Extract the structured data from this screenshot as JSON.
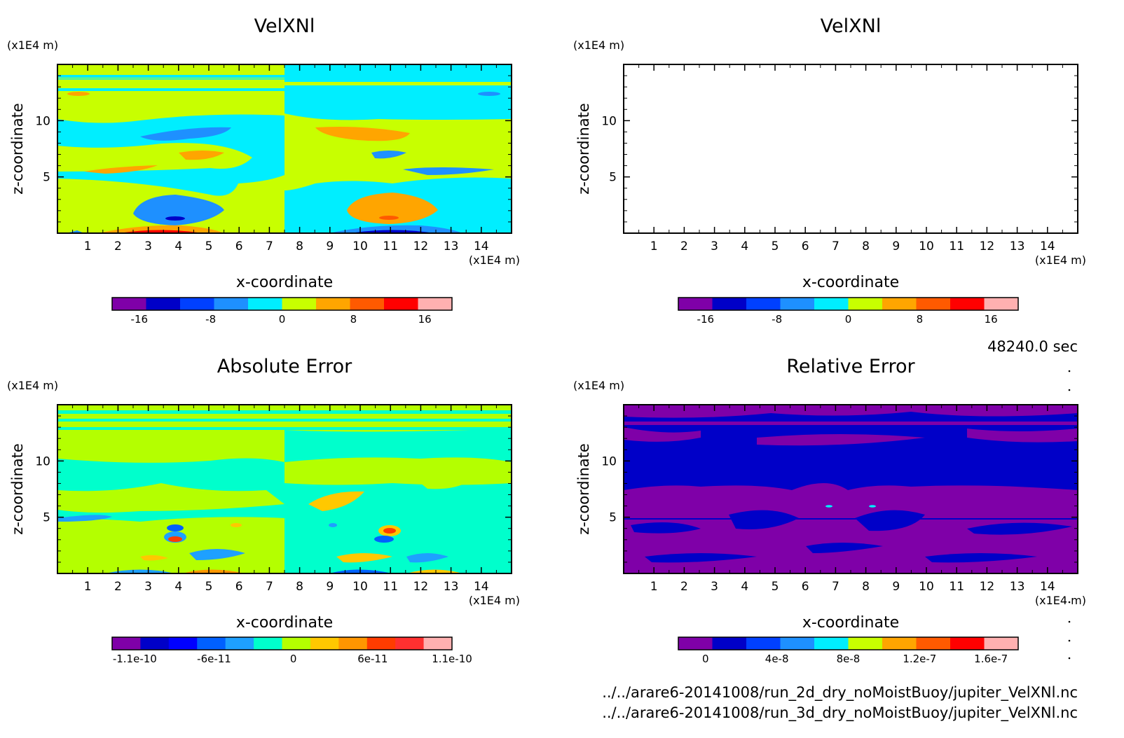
{
  "timestamp": "48240.0 sec",
  "files": [
    "../../arare6-20141008/run_2d_dry_noMoistBuoy/jupiter_VelXNl.nc",
    "../../arare6-20141008/run_3d_dry_noMoistBuoy/jupiter_VelXNl.nc"
  ],
  "chart_data": [
    {
      "type": "heatmap",
      "title": "VelXNl",
      "xlabel": "x-coordinate",
      "ylabel": "z-coordinate",
      "x_unit": "(x1E4 m)",
      "y_unit": "(x1E4 m)",
      "xlim": [
        0,
        15
      ],
      "ylim": [
        0,
        15
      ],
      "x_ticks": [
        1,
        2,
        3,
        4,
        5,
        6,
        7,
        8,
        9,
        10,
        11,
        12,
        13,
        14
      ],
      "y_ticks": [
        5,
        10
      ],
      "colorbar": {
        "colors": [
          "#7f00a8",
          "#0000c8",
          "#0040ff",
          "#1e90ff",
          "#00eeff",
          "#c8ff00",
          "#ffa500",
          "#ff5a00",
          "#ff0000",
          "#ffb0b0"
        ],
        "tick_labels": [
          "-16",
          "-8",
          "0",
          "8",
          "16"
        ]
      }
    },
    {
      "type": "heatmap",
      "title": "VelXNl",
      "xlabel": "x-coordinate",
      "ylabel": "z-coordinate",
      "x_unit": "(x1E4 m)",
      "y_unit": "(x1E4 m)",
      "xlim": [
        0,
        15
      ],
      "ylim": [
        0,
        15
      ],
      "x_ticks": [
        1,
        2,
        3,
        4,
        5,
        6,
        7,
        8,
        9,
        10,
        11,
        12,
        13,
        14
      ],
      "y_ticks": [
        5,
        10
      ],
      "colorbar": {
        "colors": [
          "#7f00a8",
          "#0000c8",
          "#0040ff",
          "#1e90ff",
          "#00eeff",
          "#c8ff00",
          "#ffa500",
          "#ff5a00",
          "#ff0000",
          "#ffb0b0"
        ],
        "tick_labels": [
          "-16",
          "-8",
          "0",
          "8",
          "16"
        ]
      }
    },
    {
      "type": "heatmap",
      "title": "Absolute Error",
      "xlabel": "x-coordinate",
      "ylabel": "z-coordinate",
      "x_unit": "(x1E4 m)",
      "y_unit": "(x1E4 m)",
      "xlim": [
        0,
        15
      ],
      "ylim": [
        0,
        15
      ],
      "x_ticks": [
        1,
        2,
        3,
        4,
        5,
        6,
        7,
        8,
        9,
        10,
        11,
        12,
        13,
        14
      ],
      "y_ticks": [
        5,
        10
      ],
      "colorbar": {
        "colors": [
          "#7f00a8",
          "#0000c8",
          "#0000ff",
          "#0060ff",
          "#1ea0ff",
          "#00ffcc",
          "#b4ff00",
          "#ffc800",
          "#ff9600",
          "#ff3c00",
          "#ff3030",
          "#ffb0b0"
        ],
        "tick_labels": [
          "-1.1e-10",
          "-6e-11",
          "0",
          "6e-11",
          "1.1e-10"
        ]
      }
    },
    {
      "type": "heatmap",
      "title": "Relative Error",
      "xlabel": "x-coordinate",
      "ylabel": "z-coordinate",
      "x_unit": "(x1E4 m)",
      "y_unit": "(x1E4 m)",
      "xlim": [
        0,
        15
      ],
      "ylim": [
        0,
        15
      ],
      "x_ticks": [
        1,
        2,
        3,
        4,
        5,
        6,
        7,
        8,
        9,
        10,
        11,
        12,
        13,
        14
      ],
      "y_ticks": [
        5,
        10
      ],
      "colorbar": {
        "colors": [
          "#7f00a8",
          "#0000c8",
          "#0040ff",
          "#1e90ff",
          "#00eeff",
          "#c8ff00",
          "#ffa500",
          "#ff5a00",
          "#ff0000",
          "#ffb0b0"
        ],
        "tick_labels": [
          "0",
          "4e-8",
          "8e-8",
          "1.2e-7",
          "1.6e-7"
        ]
      }
    }
  ]
}
